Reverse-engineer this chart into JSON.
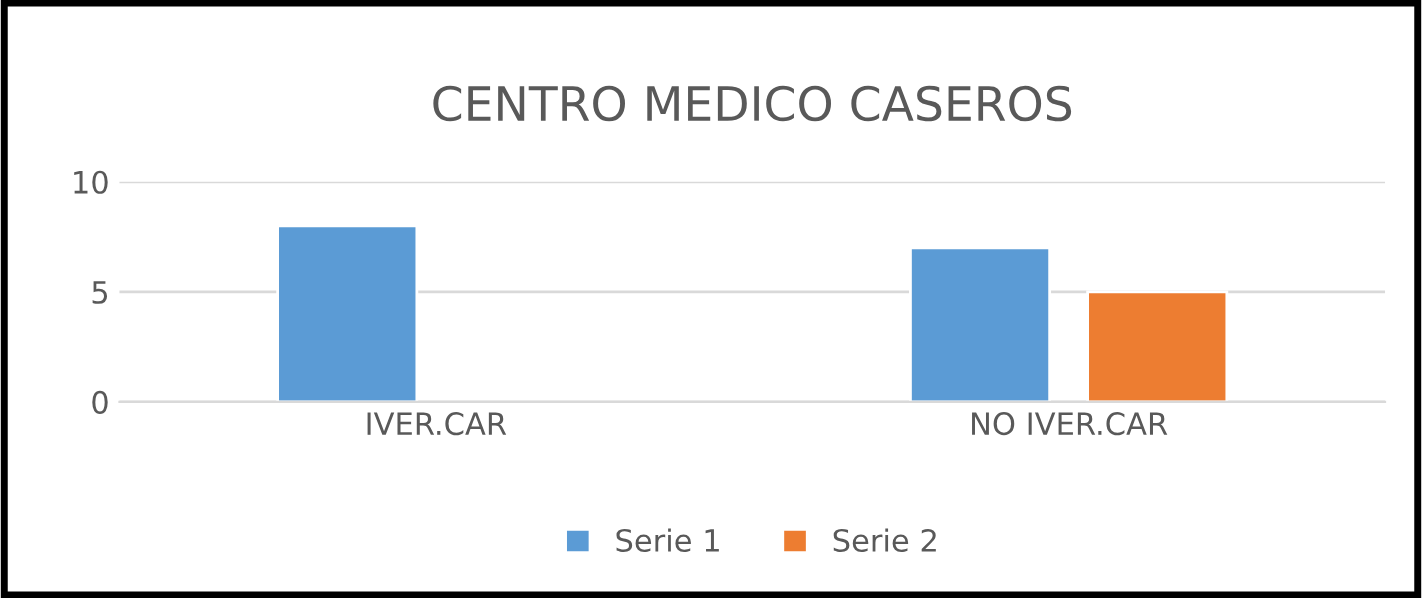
{
  "chart_data": {
    "type": "bar",
    "title": "CENTRO MEDICO CASEROS",
    "categories": [
      "IVER.CAR",
      "NO IVER.CAR"
    ],
    "series": [
      {
        "name": "Serie 1",
        "color": "#5b9bd5",
        "values": [
          8,
          7
        ]
      },
      {
        "name": "Serie 2",
        "color": "#ed7d31",
        "values": [
          null,
          5
        ]
      }
    ],
    "ylim": [
      0,
      10
    ],
    "yticks": [
      0,
      5,
      10
    ],
    "grid": "y",
    "legend": "bottom"
  }
}
